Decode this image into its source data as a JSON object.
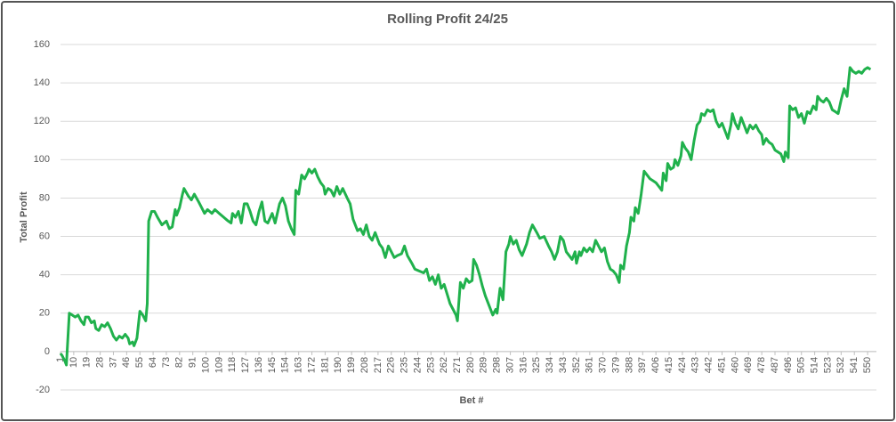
{
  "chart_data": {
    "type": "line",
    "title": "Rolling Profit 24/25",
    "x_label": "Bet #",
    "y_label": "Total Profit",
    "color": "#20b14c",
    "grid": true,
    "xlim": [
      1,
      556
    ],
    "ylim": [
      -20,
      160
    ],
    "yticks": [
      -20,
      0,
      20,
      40,
      60,
      80,
      100,
      120,
      140,
      160
    ],
    "xticks": [
      1,
      10,
      19,
      28,
      37,
      46,
      55,
      64,
      73,
      82,
      91,
      100,
      109,
      118,
      127,
      136,
      145,
      154,
      163,
      172,
      181,
      190,
      199,
      208,
      217,
      226,
      235,
      244,
      253,
      262,
      271,
      280,
      289,
      298,
      307,
      316,
      325,
      334,
      343,
      352,
      361,
      370,
      379,
      388,
      397,
      406,
      415,
      424,
      433,
      442,
      451,
      460,
      469,
      478,
      487,
      496,
      505,
      514,
      523,
      532,
      541,
      550
    ],
    "x": [
      1,
      2,
      4,
      5,
      7,
      9,
      11,
      13,
      15,
      17,
      18,
      20,
      22,
      24,
      25,
      27,
      29,
      31,
      33,
      35,
      37,
      39,
      41,
      43,
      45,
      47,
      48,
      50,
      51,
      52,
      53,
      55,
      57,
      59,
      60,
      61,
      63,
      65,
      67,
      70,
      73,
      75,
      77,
      79,
      80,
      82,
      84,
      85,
      88,
      90,
      92,
      95,
      97,
      99,
      101,
      104,
      106,
      109,
      112,
      115,
      117,
      118,
      120,
      122,
      124,
      126,
      128,
      130,
      132,
      134,
      136,
      138,
      140,
      142,
      145,
      147,
      150,
      152,
      154,
      156,
      158,
      160,
      161,
      163,
      165,
      167,
      169,
      170,
      172,
      174,
      176,
      178,
      180,
      181,
      183,
      185,
      187,
      189,
      191,
      193,
      196,
      198,
      200,
      203,
      205,
      207,
      209,
      211,
      213,
      215,
      218,
      220,
      222,
      224,
      226,
      228,
      230,
      233,
      235,
      237,
      240,
      242,
      245,
      248,
      250,
      252,
      254,
      256,
      258,
      260,
      262,
      264,
      266,
      268,
      270,
      271,
      273,
      275,
      277,
      279,
      281,
      282,
      284,
      286,
      288,
      290,
      293,
      295,
      297,
      298,
      300,
      302,
      304,
      306,
      307,
      309,
      311,
      313,
      315,
      318,
      320,
      322,
      325,
      327,
      330,
      333,
      335,
      337,
      339,
      341,
      343,
      345,
      347,
      349,
      351,
      352,
      354,
      355,
      357,
      359,
      361,
      363,
      365,
      367,
      369,
      371,
      373,
      375,
      377,
      379,
      381,
      382,
      384,
      386,
      388,
      389,
      391,
      392,
      394,
      396,
      398,
      400,
      402,
      404,
      406,
      408,
      410,
      411,
      413,
      414,
      416,
      418,
      419,
      421,
      423,
      424,
      426,
      428,
      430,
      432,
      434,
      436,
      437,
      439,
      441,
      443,
      445,
      447,
      449,
      451,
      453,
      455,
      457,
      458,
      460,
      462,
      464,
      466,
      468,
      470,
      472,
      474,
      476,
      478,
      479,
      481,
      483,
      485,
      487,
      489,
      491,
      493,
      494,
      496,
      497,
      499,
      501,
      503,
      505,
      507,
      509,
      511,
      513,
      515,
      516,
      518,
      520,
      522,
      524,
      526,
      528,
      530,
      532,
      534,
      536,
      538,
      540,
      542,
      544,
      546,
      548,
      550,
      552
    ],
    "values": [
      -1,
      -2,
      -5,
      -7,
      20,
      19,
      18,
      19,
      16,
      14,
      18,
      18,
      15,
      16,
      12,
      11,
      14,
      13,
      15,
      12,
      8,
      6,
      8,
      7,
      9,
      7,
      4,
      5,
      3,
      5,
      7,
      21,
      19,
      16,
      25,
      68,
      73,
      73,
      70,
      66,
      68,
      64,
      65,
      74,
      71,
      75,
      82,
      85,
      81,
      79,
      82,
      78,
      75,
      72,
      74,
      72,
      74,
      72,
      70,
      68,
      67,
      72,
      70,
      73,
      67,
      77,
      77,
      73,
      68,
      66,
      73,
      78,
      68,
      67,
      72,
      67,
      77,
      80,
      76,
      68,
      64,
      61,
      84,
      82,
      92,
      90,
      93,
      95,
      93,
      95,
      91,
      88,
      86,
      82,
      85,
      84,
      81,
      86,
      82,
      85,
      80,
      77,
      69,
      63,
      64,
      61,
      66,
      60,
      58,
      62,
      56,
      54,
      49,
      55,
      52,
      49,
      50,
      51,
      55,
      50,
      46,
      43,
      42,
      41,
      43,
      37,
      39,
      35,
      40,
      33,
      35,
      30,
      25,
      22,
      19,
      16,
      36,
      33,
      38,
      36,
      37,
      48,
      45,
      40,
      34,
      29,
      23,
      19,
      22,
      20,
      33,
      27,
      52,
      56,
      60,
      56,
      58,
      53,
      50,
      56,
      62,
      66,
      62,
      59,
      60,
      55,
      52,
      48,
      52,
      60,
      58,
      52,
      50,
      48,
      52,
      46,
      52,
      50,
      54,
      52,
      54,
      52,
      58,
      55,
      52,
      54,
      47,
      43,
      42,
      40,
      36,
      45,
      43,
      55,
      62,
      70,
      68,
      75,
      72,
      82,
      94,
      92,
      90,
      89,
      88,
      86,
      84,
      93,
      89,
      98,
      95,
      96,
      100,
      97,
      102,
      109,
      106,
      104,
      100,
      110,
      118,
      120,
      124,
      123,
      126,
      125,
      126,
      120,
      117,
      119,
      115,
      111,
      118,
      124,
      119,
      116,
      122,
      118,
      114,
      118,
      116,
      118,
      115,
      113,
      108,
      111,
      109,
      108,
      105,
      104,
      103,
      99,
      104,
      101,
      128,
      126,
      127,
      122,
      124,
      119,
      125,
      124,
      128,
      126,
      133,
      131,
      130,
      132,
      130,
      126,
      125,
      124,
      131,
      137,
      133,
      148,
      146,
      145,
      146,
      145,
      147,
      148,
      147
    ]
  }
}
